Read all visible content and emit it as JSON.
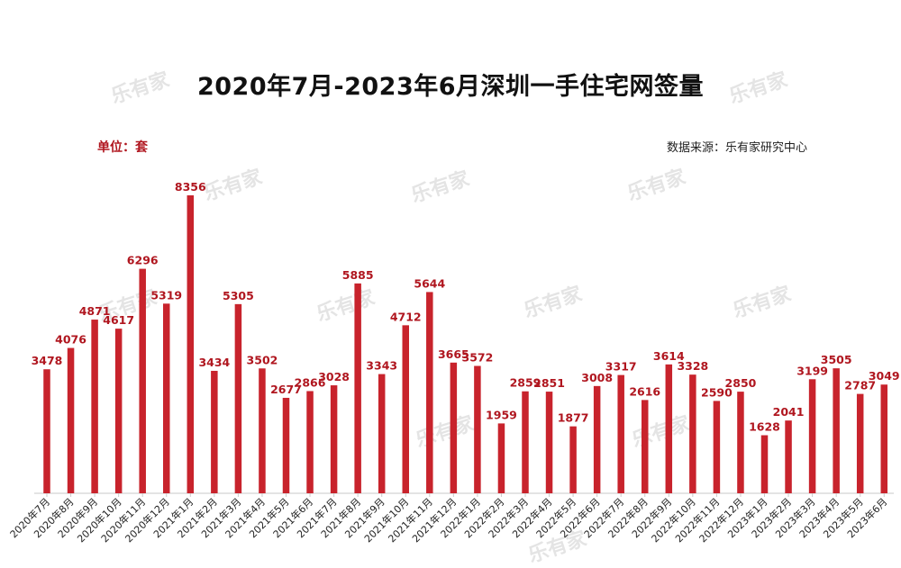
{
  "page": {
    "title": "2020年7月-2023年6月深圳一手住宅网签量",
    "unit_label": "单位：套",
    "source_label": "数据来源：乐有家研究中心",
    "watermark": "乐有家"
  },
  "colors": {
    "bar": "#c8232c",
    "label": "#b0161f",
    "axis": "#c9c9c9"
  },
  "chart_data": {
    "type": "bar",
    "title": "2020年7月-2023年6月深圳一手住宅网签量",
    "ylabel": "单位：套",
    "xlabel": "",
    "categories": [
      "2020年7月",
      "2020年8月",
      "2020年9月",
      "2020年10月",
      "2020年11月",
      "2020年12月",
      "2021年1月",
      "2021年2月",
      "2021年3月",
      "2021年4月",
      "2021年5月",
      "2021年6月",
      "2021年7月",
      "2021年8月",
      "2021年9月",
      "2021年10月",
      "2021年11月",
      "2021年12月",
      "2022年1月",
      "2022年2月",
      "2022年3月",
      "2022年4月",
      "2022年5月",
      "2022年6月",
      "2022年7月",
      "2022年8月",
      "2022年9月",
      "2022年10月",
      "2022年11月",
      "2022年12月",
      "2023年1月",
      "2023年2月",
      "2023年3月",
      "2023年4月",
      "2023年5月",
      "2023年6月"
    ],
    "values": [
      3478,
      4076,
      4871,
      4617,
      6296,
      5319,
      8356,
      3434,
      5305,
      3502,
      2677,
      2866,
      3028,
      5885,
      3343,
      4712,
      5644,
      3665,
      3572,
      1959,
      2859,
      2851,
      1877,
      3008,
      3317,
      2616,
      3614,
      3328,
      2590,
      2850,
      1628,
      2041,
      3199,
      3505,
      2787,
      3049
    ],
    "ylim": [
      0,
      8356
    ],
    "grid": false,
    "legend": "none"
  }
}
